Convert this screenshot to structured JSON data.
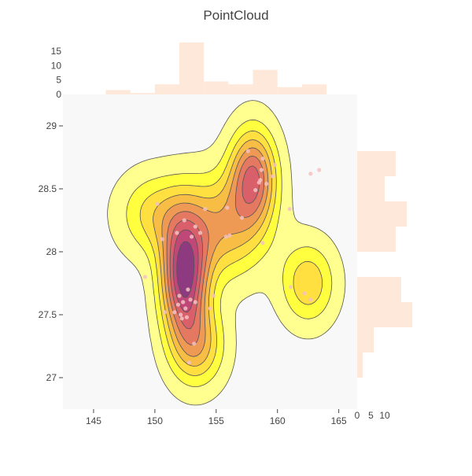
{
  "chart_data": {
    "type": "contour",
    "title": "PointCloud",
    "xlim": [
      142.5,
      166.5
    ],
    "ylim": [
      26.75,
      29.25
    ],
    "x_ticks": [
      145,
      150,
      155,
      160,
      165
    ],
    "y_ticks": [
      27,
      27.5,
      28,
      28.5,
      29
    ],
    "contour_colorscale": [
      "#ffff90",
      "#ffff40",
      "#ffe040",
      "#f7bd45",
      "#ee9a55",
      "#e57860",
      "#d9606a",
      "#c04878",
      "#8e3a80"
    ],
    "contour_line_color": "#555555",
    "plot_background": "#f8f8f8",
    "point_color": "#f4c2c2",
    "histogram_color": "#fde8da",
    "density_peaks": [
      {
        "x": 152.4,
        "y": 27.8,
        "sx": 1.3,
        "sy": 0.33,
        "w": 1.0
      },
      {
        "x": 158.0,
        "y": 28.6,
        "sx": 1.3,
        "sy": 0.26,
        "w": 0.72
      },
      {
        "x": 155.5,
        "y": 28.2,
        "sx": 2.4,
        "sy": 0.28,
        "w": 0.48
      },
      {
        "x": 162.5,
        "y": 27.75,
        "sx": 1.5,
        "sy": 0.22,
        "w": 0.38
      },
      {
        "x": 150.0,
        "y": 28.3,
        "sx": 2.0,
        "sy": 0.22,
        "w": 0.32
      },
      {
        "x": 153.5,
        "y": 27.25,
        "sx": 1.5,
        "sy": 0.22,
        "w": 0.42
      }
    ],
    "points": [
      {
        "x": 152.3,
        "y": 27.6
      },
      {
        "x": 152.5,
        "y": 27.55
      },
      {
        "x": 152.0,
        "y": 27.65
      },
      {
        "x": 152.7,
        "y": 27.7
      },
      {
        "x": 152.1,
        "y": 27.5
      },
      {
        "x": 152.6,
        "y": 27.48
      },
      {
        "x": 152.9,
        "y": 27.62
      },
      {
        "x": 151.9,
        "y": 27.58
      },
      {
        "x": 153.3,
        "y": 27.6
      },
      {
        "x": 154.5,
        "y": 27.55
      },
      {
        "x": 154.8,
        "y": 27.65
      },
      {
        "x": 152.2,
        "y": 27.47
      },
      {
        "x": 151.6,
        "y": 27.52
      },
      {
        "x": 153.2,
        "y": 27.27
      },
      {
        "x": 152.8,
        "y": 27.12
      },
      {
        "x": 152.4,
        "y": 28.25
      },
      {
        "x": 153.0,
        "y": 28.12
      },
      {
        "x": 153.3,
        "y": 28.2
      },
      {
        "x": 153.7,
        "y": 28.15
      },
      {
        "x": 151.8,
        "y": 28.15
      },
      {
        "x": 150.6,
        "y": 28.1
      },
      {
        "x": 154.1,
        "y": 28.34
      },
      {
        "x": 155.9,
        "y": 28.35
      },
      {
        "x": 157.1,
        "y": 28.27
      },
      {
        "x": 156.1,
        "y": 28.13
      },
      {
        "x": 155.8,
        "y": 28.12
      },
      {
        "x": 158.8,
        "y": 28.07
      },
      {
        "x": 157.6,
        "y": 28.8
      },
      {
        "x": 158.8,
        "y": 28.74
      },
      {
        "x": 158.7,
        "y": 28.65
      },
      {
        "x": 159.8,
        "y": 28.69
      },
      {
        "x": 159.6,
        "y": 28.6
      },
      {
        "x": 158.6,
        "y": 28.57
      },
      {
        "x": 158.5,
        "y": 28.55
      },
      {
        "x": 159.1,
        "y": 28.54
      },
      {
        "x": 158.2,
        "y": 28.49
      },
      {
        "x": 161.0,
        "y": 28.34
      },
      {
        "x": 162.7,
        "y": 28.62
      },
      {
        "x": 163.4,
        "y": 28.65
      },
      {
        "x": 161.1,
        "y": 27.72
      },
      {
        "x": 162.2,
        "y": 27.67
      },
      {
        "x": 162.7,
        "y": 27.62
      },
      {
        "x": 150.2,
        "y": 28.38
      },
      {
        "x": 149.2,
        "y": 27.8
      },
      {
        "x": 150.8,
        "y": 27.52
      }
    ],
    "x_histogram": {
      "bins": [
        {
          "x0": 146,
          "x1": 148,
          "count": 1.5
        },
        {
          "x0": 148,
          "x1": 150,
          "count": 0.5
        },
        {
          "x0": 150,
          "x1": 152,
          "count": 3.5
        },
        {
          "x0": 152,
          "x1": 154,
          "count": 18
        },
        {
          "x0": 154,
          "x1": 156,
          "count": 4.5
        },
        {
          "x0": 156,
          "x1": 158,
          "count": 3.5
        },
        {
          "x0": 158,
          "x1": 160,
          "count": 8.5
        },
        {
          "x0": 160,
          "x1": 162,
          "count": 2.5
        },
        {
          "x0": 162,
          "x1": 164,
          "count": 3.5
        }
      ],
      "ticks": [
        0,
        5,
        10,
        15
      ],
      "max": 18
    },
    "y_histogram": {
      "bins": [
        {
          "y0": 27.0,
          "y1": 27.2,
          "count": 2
        },
        {
          "y0": 27.2,
          "y1": 27.4,
          "count": 6
        },
        {
          "y0": 27.4,
          "y1": 27.6,
          "count": 20
        },
        {
          "y0": 27.6,
          "y1": 27.8,
          "count": 16
        },
        {
          "y0": 28.0,
          "y1": 28.2,
          "count": 14
        },
        {
          "y0": 28.2,
          "y1": 28.4,
          "count": 18
        },
        {
          "y0": 28.4,
          "y1": 28.6,
          "count": 10
        },
        {
          "y0": 28.6,
          "y1": 28.8,
          "count": 14
        }
      ],
      "ticks": [
        0,
        5,
        10
      ],
      "max": 20
    }
  }
}
